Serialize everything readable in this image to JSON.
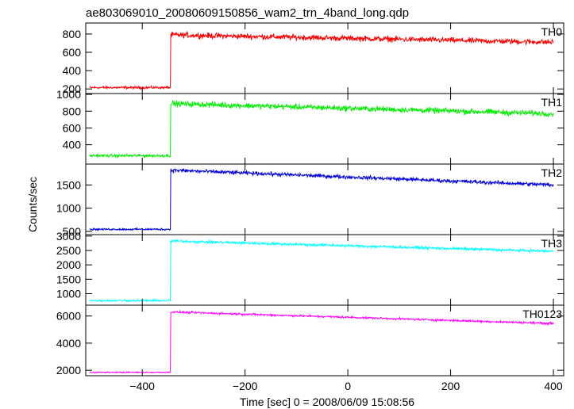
{
  "title": "ae803069010_20080609150856_wam2_trn_4band_long.qdp",
  "chart_data": {
    "type": "line",
    "title": "ae803069010_20080609150856_wam2_trn_4band_long.qdp",
    "xlabel": "Time [sec] 0 = 2008/06/09 15:08:56",
    "ylabel": "Counts/sec",
    "xlim": [
      -510,
      420
    ],
    "x_ticks": [
      -400,
      -200,
      0,
      200,
      400
    ],
    "x_tick_labels": [
      "−400",
      "−200",
      "0",
      "200",
      "400"
    ],
    "step_time": -345,
    "x_range": [
      -502,
      400
    ],
    "panels": [
      {
        "name": "TH0",
        "color": "#ff0000",
        "ylim": [
          150,
          920
        ],
        "y_ticks": [
          200,
          400,
          600,
          800
        ],
        "y_tick_labels": [
          "200",
          "400",
          "600",
          "800"
        ],
        "pre_level": 215,
        "pre_noise": 20,
        "post_start": 790,
        "post_end": 710,
        "post_noise": 45
      },
      {
        "name": "TH1",
        "color": "#00ee00",
        "ylim": [
          170,
          1010
        ],
        "y_ticks": [
          400,
          600,
          800,
          1000
        ],
        "y_tick_labels": [
          "400",
          "600",
          "800",
          "1000"
        ],
        "pre_level": 270,
        "pre_noise": 25,
        "post_start": 890,
        "post_end": 770,
        "post_noise": 50
      },
      {
        "name": "TH2",
        "color": "#0000dd",
        "ylim": [
          430,
          1950
        ],
        "y_ticks": [
          500,
          1000,
          1500
        ],
        "y_tick_labels": [
          "500",
          "1000",
          "1500"
        ],
        "pre_level": 545,
        "pre_noise": 30,
        "post_start": 1820,
        "post_end": 1500,
        "post_noise": 60
      },
      {
        "name": "TH3",
        "color": "#00ffff",
        "ylim": [
          600,
          3050
        ],
        "y_ticks": [
          1000,
          1500,
          2000,
          2500,
          3000
        ],
        "y_tick_labels": [
          "1000",
          "1500",
          "2000",
          "2500",
          "3000"
        ],
        "pre_level": 760,
        "pre_noise": 50,
        "post_start": 2830,
        "post_end": 2470,
        "post_noise": 70
      },
      {
        "name": "TH0123",
        "color": "#ff00ff",
        "ylim": [
          1600,
          6800
        ],
        "y_ticks": [
          2000,
          4000,
          6000
        ],
        "y_tick_labels": [
          "2000",
          "4000",
          "6000"
        ],
        "pre_level": 1850,
        "pre_noise": 60,
        "post_start": 6300,
        "post_end": 5450,
        "post_noise": 110
      }
    ]
  }
}
